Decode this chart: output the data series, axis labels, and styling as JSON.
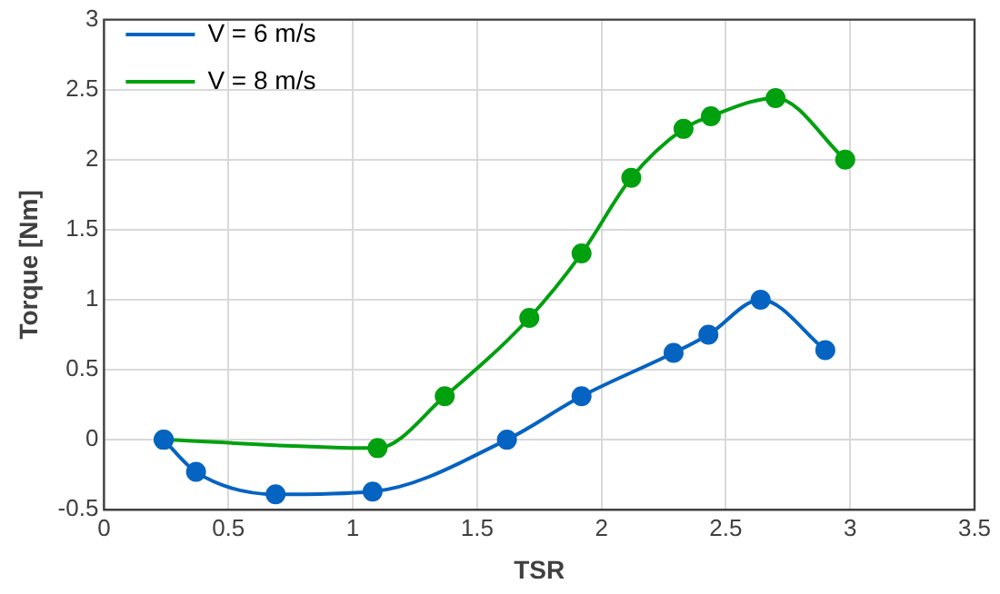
{
  "chart_data": {
    "type": "line",
    "xlabel": "TSR",
    "ylabel": "Torque [Nm]",
    "xlim": [
      0,
      3.5
    ],
    "xticks": [
      0,
      0.5,
      1,
      1.5,
      2,
      2.5,
      3,
      3.5
    ],
    "ylim": [
      -0.5,
      3
    ],
    "yticks": [
      -0.5,
      0,
      0.5,
      1,
      1.5,
      2,
      2.5,
      3
    ],
    "grid": true,
    "legend": "top left",
    "marker": "circle",
    "line_style": "solid",
    "series": [
      {
        "name": "V = 6 m/s",
        "color": "#0563c1",
        "x": [
          0.24,
          0.37,
          0.69,
          1.08,
          1.62,
          1.92,
          2.29,
          2.43,
          2.64,
          2.9
        ],
        "values": [
          0,
          -0.23,
          -0.39,
          -0.37,
          0,
          0.31,
          0.62,
          0.75,
          1.0,
          0.64
        ]
      },
      {
        "name": "V = 8 m/s",
        "color": "#00a00f",
        "x": [
          0.24,
          1.1,
          1.37,
          1.71,
          1.92,
          2.12,
          2.33,
          2.44,
          2.7,
          2.98
        ],
        "values": [
          0,
          -0.06,
          0.31,
          0.87,
          1.33,
          1.87,
          2.22,
          2.31,
          2.44,
          2.0
        ]
      }
    ]
  }
}
